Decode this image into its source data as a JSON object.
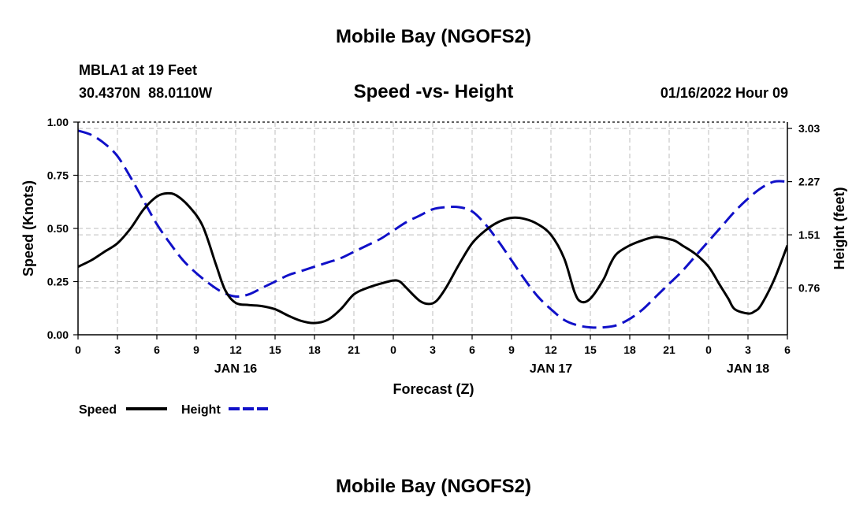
{
  "chart_data": {
    "type": "line",
    "title": "Mobile Bay (NGOFS2)",
    "footer_title": "Mobile Bay (NGOFS2)",
    "station_line": "MBLA1 at 19 Feet",
    "coords_line": "30.4370N  88.0110W",
    "center_title": "Speed -vs- Height",
    "datetime": "01/16/2022 Hour 09",
    "xlabel": "Forecast (Z)",
    "ylabel_left": "Speed (Knots)",
    "ylabel_right": "Height (feet)",
    "x_range": [
      0,
      54
    ],
    "x_tick_values": [
      0,
      3,
      6,
      9,
      12,
      15,
      18,
      21,
      24,
      27,
      30,
      33,
      36,
      39,
      42,
      45,
      48,
      51,
      54
    ],
    "x_tick_labels": [
      "0",
      "3",
      "6",
      "9",
      "12",
      "15",
      "18",
      "21",
      "0",
      "3",
      "6",
      "9",
      "12",
      "15",
      "18",
      "21",
      "0",
      "3",
      "6"
    ],
    "day_labels": [
      {
        "x": 12,
        "label": "JAN 16"
      },
      {
        "x": 36,
        "label": "JAN 17"
      },
      {
        "x": 51,
        "label": "JAN 18"
      }
    ],
    "y_left_range": [
      0,
      1
    ],
    "y_left_ticks": [
      {
        "value": 0.0,
        "label": "0.00"
      },
      {
        "value": 0.25,
        "label": "0.25"
      },
      {
        "value": 0.5,
        "label": "0.50"
      },
      {
        "value": 0.75,
        "label": "0.75"
      },
      {
        "value": 1.0,
        "label": "1.00"
      }
    ],
    "y_right_ticks": [
      {
        "value": 0.22,
        "label": "0.76"
      },
      {
        "value": 0.47,
        "label": "1.51"
      },
      {
        "value": 0.72,
        "label": "2.27"
      },
      {
        "value": 0.97,
        "label": "3.03"
      }
    ],
    "legend": [
      {
        "name": "Speed",
        "color": "#000000",
        "style": "solid"
      },
      {
        "name": "Height",
        "color": "#1010c8",
        "style": "dashed"
      }
    ],
    "series": [
      {
        "name": "Speed",
        "color": "#000000",
        "style": "solid",
        "x": [
          0,
          1,
          2,
          3,
          4,
          5,
          6,
          6.8,
          7.5,
          8.5,
          9.5,
          10.5,
          11.2,
          12,
          13,
          14,
          15,
          16,
          17,
          18,
          19,
          20,
          21,
          22,
          23,
          24,
          24.5,
          25,
          26,
          26.7,
          27.3,
          28,
          29,
          30,
          31,
          32,
          33,
          34,
          35,
          36,
          37,
          37.8,
          38.3,
          39,
          40,
          40.5,
          41,
          42,
          43,
          44,
          45,
          45.5,
          46,
          47,
          48,
          48.8,
          49.5,
          50,
          51,
          51.5,
          52,
          53,
          54
        ],
        "y": [
          0.32,
          0.35,
          0.39,
          0.43,
          0.5,
          0.59,
          0.65,
          0.665,
          0.655,
          0.6,
          0.51,
          0.33,
          0.21,
          0.15,
          0.14,
          0.135,
          0.12,
          0.09,
          0.065,
          0.055,
          0.07,
          0.12,
          0.19,
          0.22,
          0.24,
          0.255,
          0.25,
          0.22,
          0.16,
          0.145,
          0.16,
          0.22,
          0.33,
          0.43,
          0.49,
          0.53,
          0.55,
          0.545,
          0.52,
          0.47,
          0.36,
          0.2,
          0.155,
          0.17,
          0.26,
          0.33,
          0.38,
          0.42,
          0.445,
          0.46,
          0.45,
          0.44,
          0.42,
          0.38,
          0.32,
          0.24,
          0.17,
          0.12,
          0.1,
          0.11,
          0.14,
          0.26,
          0.42
        ]
      },
      {
        "name": "Height",
        "color": "#1010c8",
        "style": "dashed",
        "x": [
          0,
          1,
          2,
          3,
          4,
          5,
          6,
          7,
          8,
          9,
          10,
          11,
          12,
          13,
          14,
          15,
          16,
          17,
          18,
          19,
          20,
          21,
          22,
          23,
          24,
          25,
          26,
          27,
          28,
          29,
          30,
          31,
          32,
          33,
          34,
          35,
          36,
          37,
          38,
          39,
          40,
          41,
          42,
          43,
          44,
          45,
          46,
          47,
          48,
          49,
          50,
          51,
          52,
          53,
          54
        ],
        "y": [
          0.96,
          0.94,
          0.9,
          0.84,
          0.74,
          0.63,
          0.52,
          0.43,
          0.35,
          0.29,
          0.24,
          0.2,
          0.18,
          0.19,
          0.22,
          0.25,
          0.28,
          0.3,
          0.32,
          0.34,
          0.36,
          0.39,
          0.42,
          0.45,
          0.49,
          0.53,
          0.56,
          0.59,
          0.6,
          0.6,
          0.58,
          0.52,
          0.44,
          0.35,
          0.26,
          0.18,
          0.12,
          0.07,
          0.045,
          0.035,
          0.035,
          0.045,
          0.075,
          0.12,
          0.18,
          0.24,
          0.3,
          0.37,
          0.44,
          0.51,
          0.58,
          0.64,
          0.69,
          0.72,
          0.72
        ]
      }
    ]
  },
  "colors": {
    "grid": "#bdbdbd",
    "axis": "#000000",
    "height_line": "#1010c8",
    "speed_line": "#000000"
  }
}
